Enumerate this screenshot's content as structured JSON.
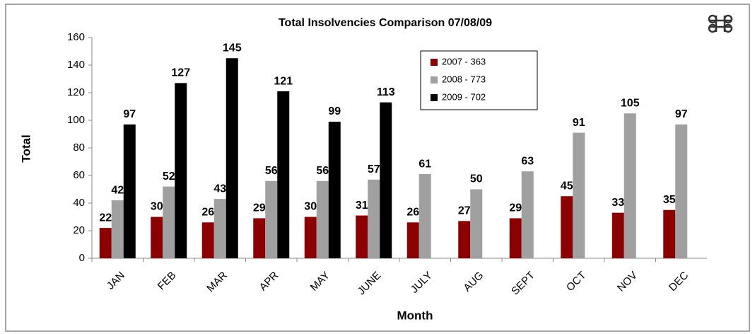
{
  "chart_data": {
    "type": "bar",
    "title": "Total Insolvencies Comparison 07/08/09",
    "x_label": "Month",
    "y_label": "Total",
    "categories": [
      "JAN",
      "FEB",
      "MAR",
      "APR",
      "MAY",
      "JUNE",
      "JULY",
      "AUG",
      "SEPT",
      "OCT",
      "NOV",
      "DEC"
    ],
    "series": [
      {
        "name": "2007 - 363",
        "color": "#8b0000",
        "values": [
          22,
          30,
          26,
          29,
          30,
          31,
          26,
          27,
          29,
          45,
          33,
          35
        ]
      },
      {
        "name": "2008 - 773",
        "color": "#a0a0a0",
        "values": [
          42,
          52,
          43,
          56,
          56,
          57,
          61,
          50,
          63,
          91,
          105,
          97
        ]
      },
      {
        "name": "2009 - 702",
        "color": "#000000",
        "values": [
          97,
          127,
          145,
          121,
          99,
          113,
          null,
          null,
          null,
          null,
          null,
          null
        ]
      }
    ],
    "ylim": [
      0,
      160
    ],
    "yticks": [
      0,
      20,
      40,
      60,
      80,
      100,
      120,
      140,
      160
    ],
    "grid": false
  }
}
